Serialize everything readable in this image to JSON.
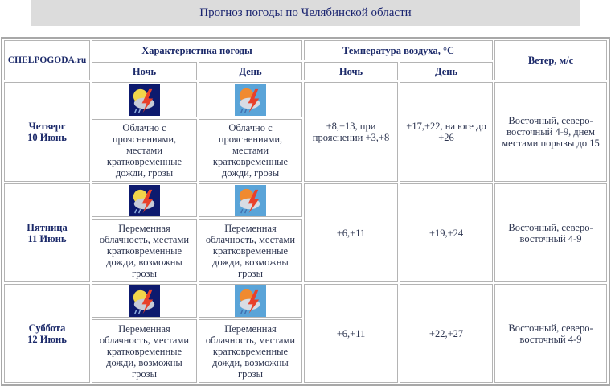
{
  "title": "Прогноз погоды по Челябинской области",
  "header": {
    "brand": "CHELPOGODA.ru",
    "weather": "Характеристика погоды",
    "temperature": "Температура воздуха, °C",
    "wind": "Ветер, м/с",
    "night": "Ночь",
    "day": "День"
  },
  "days": [
    {
      "weekday": "Четверг",
      "date": "10 Июнь",
      "night_icon": "night-thunderstorm-icon",
      "day_icon": "day-thunderstorm-icon",
      "night_desc": "Облачно с прояснениями, местами кратковременные дожди, грозы",
      "day_desc": "Облачно с прояснениями, местами кратковременные дожди, грозы",
      "temp_night": "+8,+13, при прояснении +3,+8",
      "temp_day": "+17,+22, на юге до +26",
      "wind": "Восточный, северо-восточный 4-9, днем местами порывы до 15"
    },
    {
      "weekday": "Пятница",
      "date": "11 Июнь",
      "night_icon": "night-thunderstorm-icon",
      "day_icon": "day-thunderstorm-icon",
      "night_desc": "Переменная облачность, местами кратковременные дожди, возможны грозы",
      "day_desc": "Переменная облачность, местами кратковременные дожди, возможны грозы",
      "temp_night": "+6,+11",
      "temp_day": "+19,+24",
      "wind": "Восточный, северо-восточный 4-9"
    },
    {
      "weekday": "Суббота",
      "date": "12 Июнь",
      "night_icon": "night-thunderstorm-icon",
      "day_icon": "day-thunderstorm-icon",
      "night_desc": "Переменная облачность, местами кратковременные дожди, возможны грозы",
      "day_desc": "Переменная облачность, местами кратковременные дожди, возможны грозы",
      "temp_night": "+6,+11",
      "temp_day": "+22,+27",
      "wind": "Восточный, северо-восточный 4-9"
    }
  ]
}
